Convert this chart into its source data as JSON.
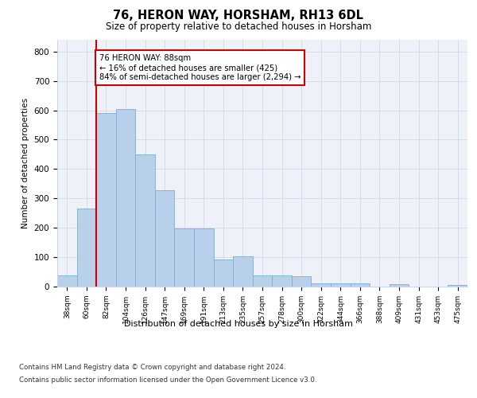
{
  "title": "76, HERON WAY, HORSHAM, RH13 6DL",
  "subtitle": "Size of property relative to detached houses in Horsham",
  "xlabel": "Distribution of detached houses by size in Horsham",
  "ylabel": "Number of detached properties",
  "categories": [
    "38sqm",
    "60sqm",
    "82sqm",
    "104sqm",
    "126sqm",
    "147sqm",
    "169sqm",
    "191sqm",
    "213sqm",
    "235sqm",
    "257sqm",
    "278sqm",
    "300sqm",
    "322sqm",
    "344sqm",
    "366sqm",
    "388sqm",
    "409sqm",
    "431sqm",
    "453sqm",
    "475sqm"
  ],
  "values": [
    38,
    265,
    590,
    605,
    450,
    328,
    198,
    197,
    92,
    103,
    38,
    38,
    35,
    12,
    12,
    10,
    0,
    8,
    0,
    0,
    5
  ],
  "bar_color": "#b8d0ea",
  "bar_edge_color": "#7aadd4",
  "property_line_color": "#cc0000",
  "annotation_text": "76 HERON WAY: 88sqm\n← 16% of detached houses are smaller (425)\n84% of semi-detached houses are larger (2,294) →",
  "annotation_box_color": "#ffffff",
  "annotation_box_edge_color": "#cc0000",
  "ylim": [
    0,
    840
  ],
  "yticks": [
    0,
    100,
    200,
    300,
    400,
    500,
    600,
    700,
    800
  ],
  "background_color": "#eef2f8",
  "footer_line1": "Contains HM Land Registry data © Crown copyright and database right 2024.",
  "footer_line2": "Contains public sector information licensed under the Open Government Licence v3.0."
}
